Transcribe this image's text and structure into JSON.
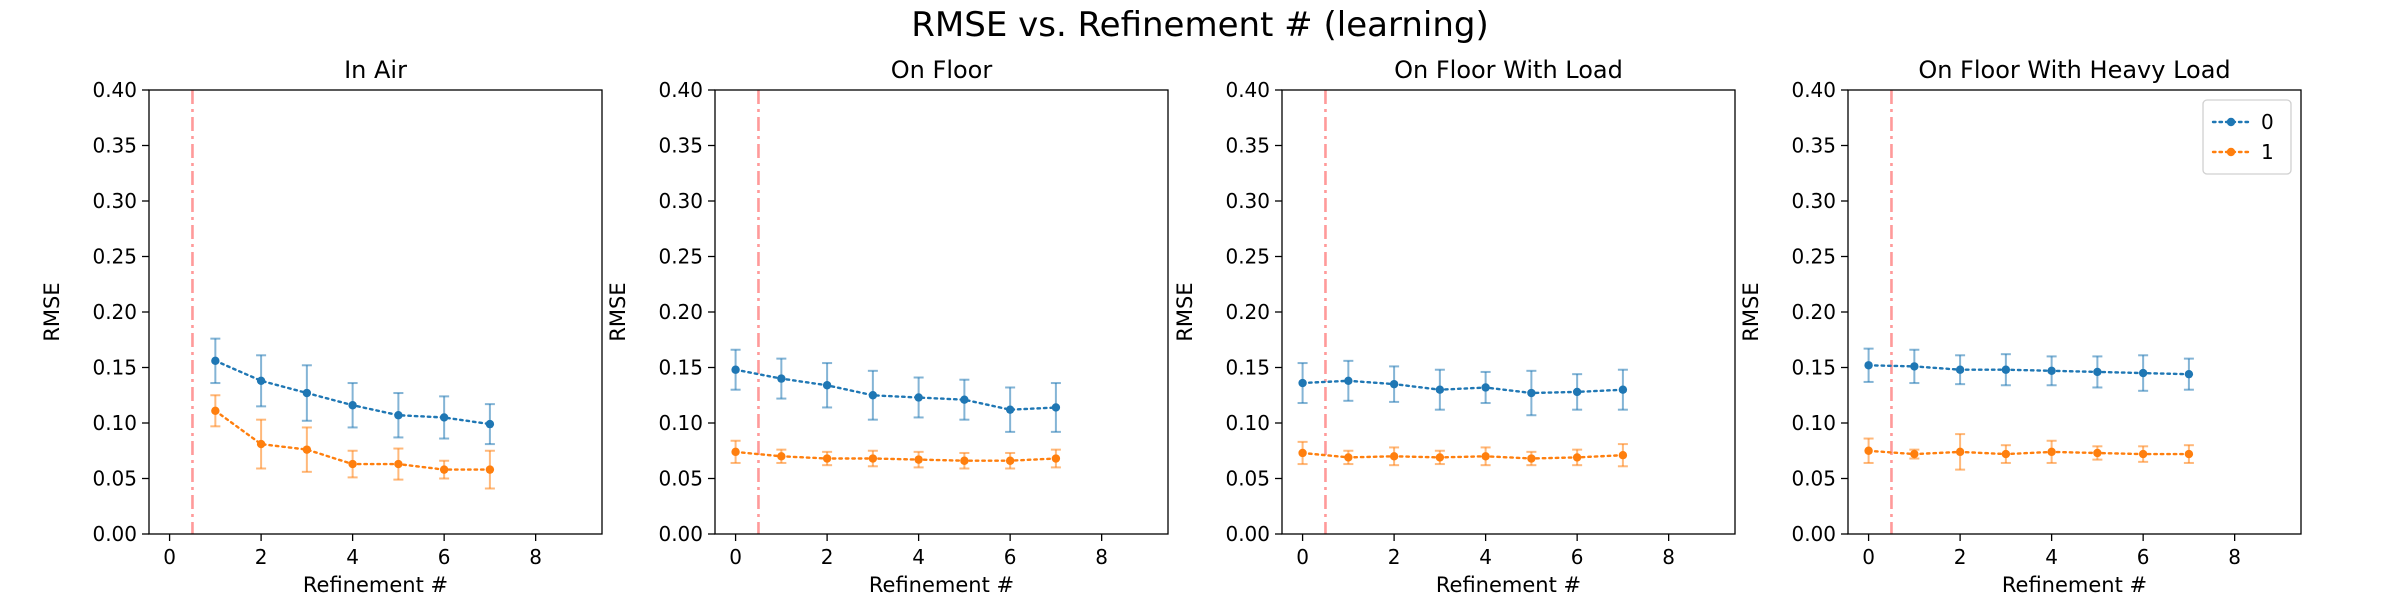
{
  "figure": {
    "title": "RMSE vs. Refinement # (learning)"
  },
  "chart_data": [
    {
      "type": "line",
      "title": "In Air",
      "xlabel": "Refinement #",
      "ylabel": "RMSE",
      "xlim": [
        -0.45,
        9.45
      ],
      "ylim": [
        0,
        0.4
      ],
      "xticks": [
        0,
        2,
        4,
        6,
        8
      ],
      "yticks": [
        0.0,
        0.05,
        0.1,
        0.15,
        0.2,
        0.25,
        0.3,
        0.35,
        0.4
      ],
      "vline": 0.5,
      "legend": false,
      "series": [
        {
          "name": "0",
          "x": [
            1,
            2,
            3,
            4,
            5,
            6,
            7
          ],
          "y": [
            0.156,
            0.138,
            0.127,
            0.116,
            0.107,
            0.105,
            0.099
          ],
          "err": [
            0.02,
            0.023,
            0.025,
            0.02,
            0.02,
            0.019,
            0.018
          ]
        },
        {
          "name": "1",
          "x": [
            1,
            2,
            3,
            4,
            5,
            6,
            7
          ],
          "y": [
            0.111,
            0.081,
            0.076,
            0.063,
            0.063,
            0.058,
            0.058
          ],
          "err": [
            0.014,
            0.022,
            0.02,
            0.012,
            0.014,
            0.008,
            0.017
          ]
        }
      ]
    },
    {
      "type": "line",
      "title": "On Floor",
      "xlabel": "Refinement #",
      "ylabel": "RMSE",
      "xlim": [
        -0.45,
        9.45
      ],
      "ylim": [
        0,
        0.4
      ],
      "xticks": [
        0,
        2,
        4,
        6,
        8
      ],
      "yticks": [
        0.0,
        0.05,
        0.1,
        0.15,
        0.2,
        0.25,
        0.3,
        0.35,
        0.4
      ],
      "vline": 0.5,
      "legend": false,
      "series": [
        {
          "name": "0",
          "x": [
            0,
            1,
            2,
            3,
            4,
            5,
            6,
            7
          ],
          "y": [
            0.148,
            0.14,
            0.134,
            0.125,
            0.123,
            0.121,
            0.112,
            0.114
          ],
          "err": [
            0.018,
            0.018,
            0.02,
            0.022,
            0.018,
            0.018,
            0.02,
            0.022
          ]
        },
        {
          "name": "1",
          "x": [
            0,
            1,
            2,
            3,
            4,
            5,
            6,
            7
          ],
          "y": [
            0.074,
            0.07,
            0.068,
            0.068,
            0.067,
            0.066,
            0.066,
            0.068
          ],
          "err": [
            0.01,
            0.006,
            0.006,
            0.007,
            0.007,
            0.007,
            0.007,
            0.008
          ]
        }
      ]
    },
    {
      "type": "line",
      "title": "On Floor With Load",
      "xlabel": "Refinement #",
      "ylabel": "RMSE",
      "xlim": [
        -0.45,
        9.45
      ],
      "ylim": [
        0,
        0.4
      ],
      "xticks": [
        0,
        2,
        4,
        6,
        8
      ],
      "yticks": [
        0.0,
        0.05,
        0.1,
        0.15,
        0.2,
        0.25,
        0.3,
        0.35,
        0.4
      ],
      "vline": 0.5,
      "legend": false,
      "series": [
        {
          "name": "0",
          "x": [
            0,
            1,
            2,
            3,
            4,
            5,
            6,
            7
          ],
          "y": [
            0.136,
            0.138,
            0.135,
            0.13,
            0.132,
            0.127,
            0.128,
            0.13
          ],
          "err": [
            0.018,
            0.018,
            0.016,
            0.018,
            0.014,
            0.02,
            0.016,
            0.018
          ]
        },
        {
          "name": "1",
          "x": [
            0,
            1,
            2,
            3,
            4,
            5,
            6,
            7
          ],
          "y": [
            0.073,
            0.069,
            0.07,
            0.069,
            0.07,
            0.068,
            0.069,
            0.071
          ],
          "err": [
            0.01,
            0.006,
            0.008,
            0.006,
            0.008,
            0.006,
            0.007,
            0.01
          ]
        }
      ]
    },
    {
      "type": "line",
      "title": "On Floor With Heavy Load",
      "xlabel": "Refinement #",
      "ylabel": "RMSE",
      "xlim": [
        -0.45,
        9.45
      ],
      "ylim": [
        0,
        0.4
      ],
      "xticks": [
        0,
        2,
        4,
        6,
        8
      ],
      "yticks": [
        0.0,
        0.05,
        0.1,
        0.15,
        0.2,
        0.25,
        0.3,
        0.35,
        0.4
      ],
      "vline": 0.5,
      "legend": true,
      "legend_position": "upper right",
      "series": [
        {
          "name": "0",
          "x": [
            0,
            1,
            2,
            3,
            4,
            5,
            6,
            7
          ],
          "y": [
            0.152,
            0.151,
            0.148,
            0.148,
            0.147,
            0.146,
            0.145,
            0.144
          ],
          "err": [
            0.015,
            0.015,
            0.013,
            0.014,
            0.013,
            0.014,
            0.016,
            0.014
          ]
        },
        {
          "name": "1",
          "x": [
            0,
            1,
            2,
            3,
            4,
            5,
            6,
            7
          ],
          "y": [
            0.075,
            0.072,
            0.074,
            0.072,
            0.074,
            0.073,
            0.072,
            0.072
          ],
          "err": [
            0.011,
            0.004,
            0.016,
            0.008,
            0.01,
            0.006,
            0.007,
            0.008
          ]
        }
      ]
    }
  ],
  "style": {
    "series_colors": [
      "#1f77b4",
      "#ff7f0e"
    ],
    "vline_color": "#ff9a9a",
    "axis_color": "#000000"
  }
}
